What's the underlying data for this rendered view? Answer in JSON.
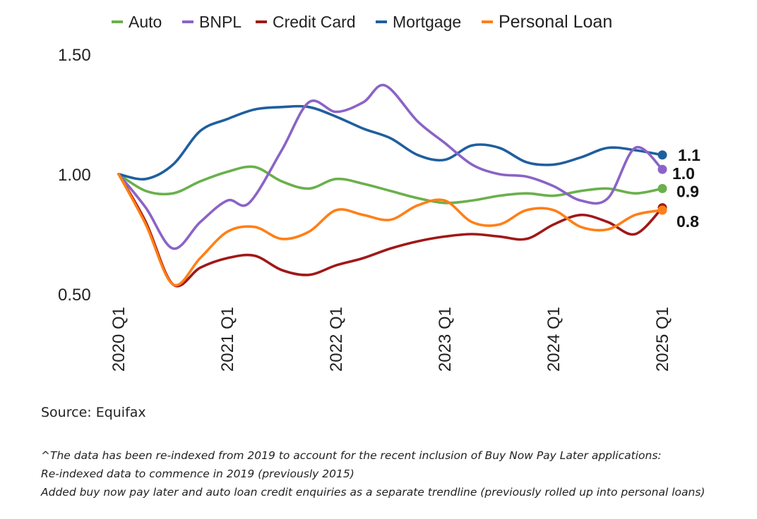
{
  "chart_data": {
    "type": "line",
    "title": "",
    "xlabel": "",
    "ylabel": "",
    "ylim": [
      0.5,
      1.5
    ],
    "yticks": [
      "1.50",
      "1.00",
      "0.50"
    ],
    "xticks": [
      "2020 Q1",
      "2021 Q1",
      "2022 Q1",
      "2023 Q1",
      "2024 Q1",
      "2025 Q1"
    ],
    "legend_position": "top",
    "grid": false,
    "series": [
      {
        "name": "Auto",
        "color": "#6ab04c",
        "end_label": "0.9",
        "points": [
          [
            2020.0,
            1.0
          ],
          [
            2020.25,
            0.93
          ],
          [
            2020.5,
            0.92
          ],
          [
            2020.75,
            0.97
          ],
          [
            2021.0,
            1.01
          ],
          [
            2021.25,
            1.03
          ],
          [
            2021.5,
            0.97
          ],
          [
            2021.75,
            0.94
          ],
          [
            2022.0,
            0.98
          ],
          [
            2022.25,
            0.96
          ],
          [
            2022.5,
            0.93
          ],
          [
            2022.75,
            0.9
          ],
          [
            2023.0,
            0.88
          ],
          [
            2023.25,
            0.89
          ],
          [
            2023.5,
            0.91
          ],
          [
            2023.75,
            0.92
          ],
          [
            2024.0,
            0.91
          ],
          [
            2024.25,
            0.93
          ],
          [
            2024.5,
            0.94
          ],
          [
            2024.75,
            0.92
          ],
          [
            2025.0,
            0.94
          ]
        ]
      },
      {
        "name": "BNPL",
        "color": "#8a63c6",
        "end_label": "1.0",
        "points": [
          [
            2020.0,
            1.0
          ],
          [
            2020.25,
            0.86
          ],
          [
            2020.5,
            0.69
          ],
          [
            2020.75,
            0.8
          ],
          [
            2021.0,
            0.89
          ],
          [
            2021.2,
            0.88
          ],
          [
            2021.5,
            1.1
          ],
          [
            2021.75,
            1.3
          ],
          [
            2022.0,
            1.26
          ],
          [
            2022.25,
            1.3
          ],
          [
            2022.45,
            1.37
          ],
          [
            2022.75,
            1.22
          ],
          [
            2023.0,
            1.13
          ],
          [
            2023.25,
            1.04
          ],
          [
            2023.5,
            1.0
          ],
          [
            2023.75,
            0.99
          ],
          [
            2024.0,
            0.95
          ],
          [
            2024.25,
            0.89
          ],
          [
            2024.5,
            0.9
          ],
          [
            2024.75,
            1.11
          ],
          [
            2025.0,
            1.02
          ]
        ]
      },
      {
        "name": "Credit Card",
        "color": "#a01818",
        "end_label": "",
        "points": [
          [
            2020.0,
            1.0
          ],
          [
            2020.25,
            0.8
          ],
          [
            2020.5,
            0.54
          ],
          [
            2020.75,
            0.61
          ],
          [
            2021.0,
            0.65
          ],
          [
            2021.25,
            0.66
          ],
          [
            2021.5,
            0.6
          ],
          [
            2021.75,
            0.58
          ],
          [
            2022.0,
            0.62
          ],
          [
            2022.25,
            0.65
          ],
          [
            2022.5,
            0.69
          ],
          [
            2022.75,
            0.72
          ],
          [
            2023.0,
            0.74
          ],
          [
            2023.25,
            0.75
          ],
          [
            2023.5,
            0.74
          ],
          [
            2023.75,
            0.73
          ],
          [
            2024.0,
            0.79
          ],
          [
            2024.25,
            0.83
          ],
          [
            2024.5,
            0.8
          ],
          [
            2024.75,
            0.75
          ],
          [
            2025.0,
            0.86
          ]
        ]
      },
      {
        "name": "Mortgage",
        "color": "#1f5f9e",
        "end_label": "1.1",
        "points": [
          [
            2020.0,
            1.0
          ],
          [
            2020.25,
            0.98
          ],
          [
            2020.5,
            1.04
          ],
          [
            2020.75,
            1.18
          ],
          [
            2021.0,
            1.23
          ],
          [
            2021.25,
            1.27
          ],
          [
            2021.5,
            1.28
          ],
          [
            2021.75,
            1.28
          ],
          [
            2022.0,
            1.24
          ],
          [
            2022.25,
            1.19
          ],
          [
            2022.5,
            1.15
          ],
          [
            2022.75,
            1.08
          ],
          [
            2023.0,
            1.06
          ],
          [
            2023.25,
            1.12
          ],
          [
            2023.5,
            1.11
          ],
          [
            2023.75,
            1.05
          ],
          [
            2024.0,
            1.04
          ],
          [
            2024.25,
            1.07
          ],
          [
            2024.5,
            1.11
          ],
          [
            2024.75,
            1.1
          ],
          [
            2025.0,
            1.08
          ]
        ]
      },
      {
        "name": "Personal Loan",
        "color": "#ff7f16",
        "end_label": "0.8",
        "points": [
          [
            2020.0,
            1.0
          ],
          [
            2020.25,
            0.79
          ],
          [
            2020.5,
            0.54
          ],
          [
            2020.75,
            0.65
          ],
          [
            2021.0,
            0.76
          ],
          [
            2021.25,
            0.78
          ],
          [
            2021.5,
            0.73
          ],
          [
            2021.75,
            0.76
          ],
          [
            2022.0,
            0.85
          ],
          [
            2022.25,
            0.83
          ],
          [
            2022.5,
            0.81
          ],
          [
            2022.75,
            0.87
          ],
          [
            2023.0,
            0.89
          ],
          [
            2023.25,
            0.8
          ],
          [
            2023.5,
            0.79
          ],
          [
            2023.75,
            0.85
          ],
          [
            2024.0,
            0.85
          ],
          [
            2024.25,
            0.78
          ],
          [
            2024.5,
            0.77
          ],
          [
            2024.75,
            0.83
          ],
          [
            2025.0,
            0.85
          ]
        ]
      }
    ]
  },
  "source": "Source: Equifax",
  "notes": [
    "^The data has been re-indexed from 2019 to account for the recent inclusion of Buy Now Pay Later applications:",
    "Re-indexed data to commence in 2019 (previously 2015)",
    "Added buy now pay later and auto loan credit enquiries as a separate trendline (previously rolled up into personal loans)"
  ]
}
